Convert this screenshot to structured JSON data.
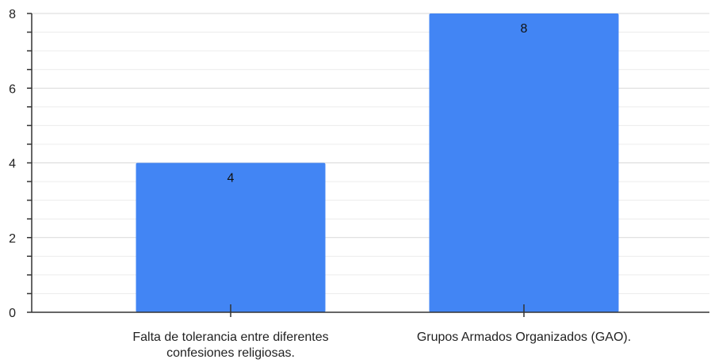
{
  "chart_data": {
    "type": "bar",
    "categories": [
      [
        "Falta de tolerancia entre diferentes",
        "confesiones religiosas."
      ],
      [
        "Grupos Armados Organizados (GAO)."
      ]
    ],
    "values": [
      4,
      8
    ],
    "data_labels": [
      "4",
      "8"
    ],
    "title": "",
    "xlabel": "",
    "ylabel": "",
    "ylim": [
      0,
      8
    ],
    "yticks": [
      0,
      2,
      4,
      6,
      8
    ],
    "ytick_labels": [
      "0",
      "2",
      "4",
      "6",
      "8"
    ],
    "minor_ticks_per_major": 3,
    "grid": true,
    "legend": "none"
  },
  "colors": {
    "bar": "#4285f4",
    "grid": "#d9d9d9",
    "axis": "#333333",
    "text": "#222222"
  }
}
